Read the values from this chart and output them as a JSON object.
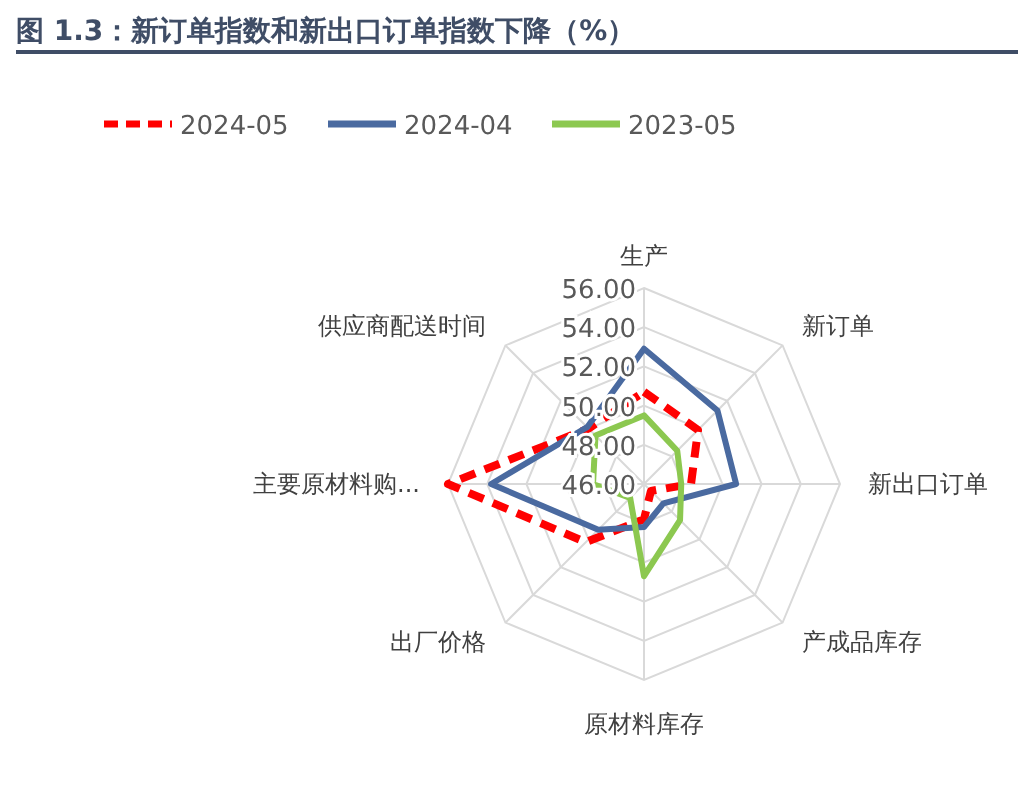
{
  "chart_data": {
    "type": "radar",
    "title": "图 1.3：新订单指数和新出口订单指数下降（%）",
    "categories": [
      "生产",
      "新订单",
      "新出口订单",
      "产成品库存",
      "原材料库存",
      "出厂价格",
      "主要原材料购...",
      "供应商配送时间"
    ],
    "series": [
      {
        "name": "2024-05",
        "color": "#ff0000",
        "line_style": "dashed",
        "values": [
          50.7,
          49.9,
          48.4,
          46.5,
          47.8,
          50.2,
          56.0,
          50.0
        ]
      },
      {
        "name": "2024-04",
        "color": "#4a6aa0",
        "values": [
          52.9,
          51.3,
          50.7,
          47.4,
          48.2,
          49.3,
          53.8,
          50.1
        ]
      },
      {
        "name": "2023-05",
        "color": "#8cc850",
        "values": [
          49.5,
          48.4,
          47.9,
          48.6,
          50.7,
          47.0,
          48.6,
          49.5
        ]
      }
    ],
    "ylim": [
      46,
      56
    ],
    "yticks": [
      {
        "value": 46,
        "label": "46.00"
      },
      {
        "value": 48,
        "label": "48.00"
      },
      {
        "value": 50,
        "label": "50.00"
      },
      {
        "value": 52,
        "label": "52.00"
      },
      {
        "value": 54,
        "label": "54.00"
      },
      {
        "value": 56,
        "label": "56.00"
      }
    ],
    "grid": true,
    "legend": "top"
  }
}
